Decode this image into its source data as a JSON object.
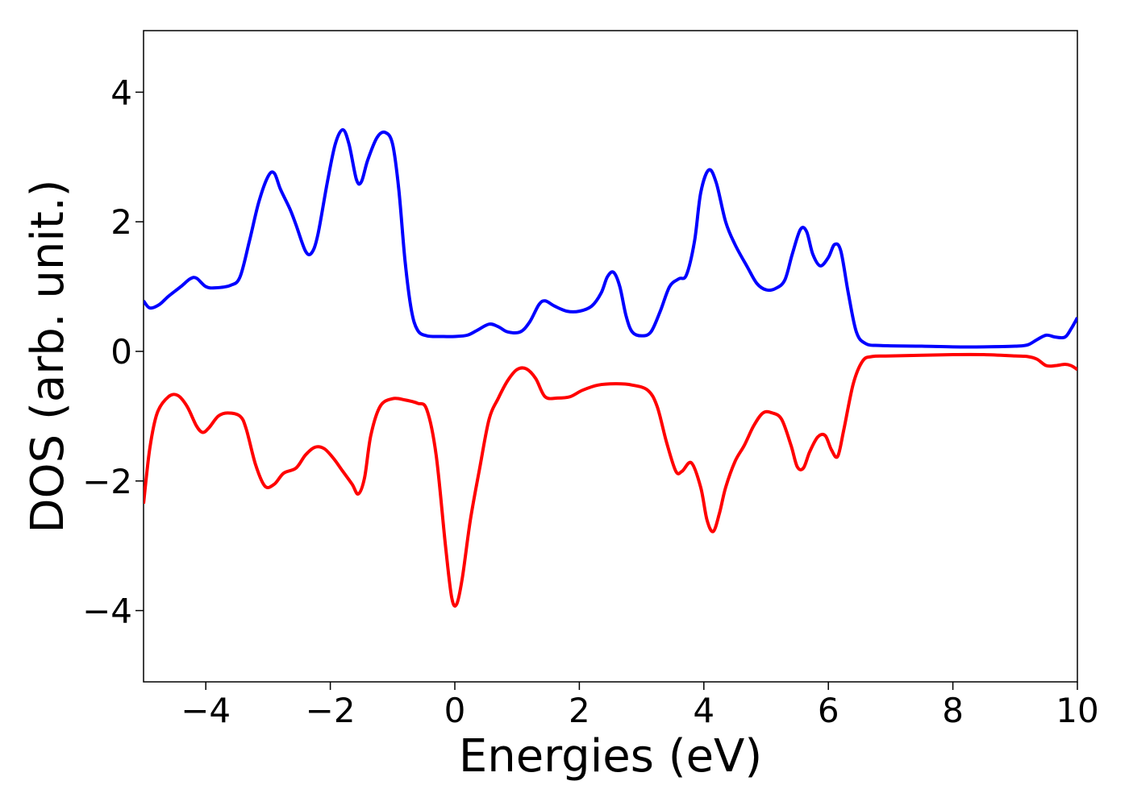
{
  "chart_data": {
    "type": "line",
    "xlabel": "Energies (eV)",
    "ylabel": "DOS (arb. unit.)",
    "xlim": [
      -5,
      10
    ],
    "ylim": [
      -5.1,
      4.95
    ],
    "xticks": [
      -4,
      -2,
      0,
      2,
      4,
      6,
      8,
      10
    ],
    "xtick_labels": [
      "−4",
      "−2",
      "0",
      "2",
      "4",
      "6",
      "8",
      "10"
    ],
    "yticks": [
      -4,
      -2,
      0,
      2,
      4
    ],
    "ytick_labels": [
      "−4",
      "−2",
      "0",
      "2",
      "4"
    ],
    "grid": false,
    "series": [
      {
        "color": "#0000ff",
        "points": [
          [
            -5.0,
            0.78
          ],
          [
            -4.9,
            0.67
          ],
          [
            -4.75,
            0.72
          ],
          [
            -4.6,
            0.85
          ],
          [
            -4.4,
            1.0
          ],
          [
            -4.25,
            1.12
          ],
          [
            -4.15,
            1.13
          ],
          [
            -4.0,
            1.0
          ],
          [
            -3.85,
            0.98
          ],
          [
            -3.6,
            1.02
          ],
          [
            -3.45,
            1.15
          ],
          [
            -3.3,
            1.7
          ],
          [
            -3.15,
            2.3
          ],
          [
            -3.0,
            2.7
          ],
          [
            -2.9,
            2.75
          ],
          [
            -2.8,
            2.5
          ],
          [
            -2.65,
            2.2
          ],
          [
            -2.55,
            1.95
          ],
          [
            -2.4,
            1.55
          ],
          [
            -2.3,
            1.52
          ],
          [
            -2.2,
            1.8
          ],
          [
            -2.05,
            2.6
          ],
          [
            -1.92,
            3.2
          ],
          [
            -1.8,
            3.42
          ],
          [
            -1.7,
            3.2
          ],
          [
            -1.58,
            2.65
          ],
          [
            -1.5,
            2.62
          ],
          [
            -1.4,
            2.95
          ],
          [
            -1.25,
            3.3
          ],
          [
            -1.12,
            3.38
          ],
          [
            -1.0,
            3.2
          ],
          [
            -0.9,
            2.5
          ],
          [
            -0.8,
            1.4
          ],
          [
            -0.7,
            0.65
          ],
          [
            -0.6,
            0.33
          ],
          [
            -0.45,
            0.24
          ],
          [
            -0.2,
            0.23
          ],
          [
            0.0,
            0.23
          ],
          [
            0.2,
            0.25
          ],
          [
            0.35,
            0.32
          ],
          [
            0.55,
            0.42
          ],
          [
            0.7,
            0.38
          ],
          [
            0.85,
            0.3
          ],
          [
            1.05,
            0.3
          ],
          [
            1.2,
            0.45
          ],
          [
            1.35,
            0.72
          ],
          [
            1.45,
            0.78
          ],
          [
            1.6,
            0.7
          ],
          [
            1.8,
            0.62
          ],
          [
            2.0,
            0.62
          ],
          [
            2.2,
            0.7
          ],
          [
            2.35,
            0.9
          ],
          [
            2.45,
            1.15
          ],
          [
            2.55,
            1.22
          ],
          [
            2.65,
            1.0
          ],
          [
            2.75,
            0.55
          ],
          [
            2.85,
            0.3
          ],
          [
            3.0,
            0.24
          ],
          [
            3.15,
            0.3
          ],
          [
            3.3,
            0.62
          ],
          [
            3.45,
            1.0
          ],
          [
            3.6,
            1.12
          ],
          [
            3.72,
            1.18
          ],
          [
            3.85,
            1.7
          ],
          [
            3.95,
            2.45
          ],
          [
            4.08,
            2.8
          ],
          [
            4.2,
            2.6
          ],
          [
            4.35,
            2.0
          ],
          [
            4.5,
            1.65
          ],
          [
            4.7,
            1.3
          ],
          [
            4.85,
            1.05
          ],
          [
            5.0,
            0.95
          ],
          [
            5.15,
            0.97
          ],
          [
            5.3,
            1.1
          ],
          [
            5.42,
            1.5
          ],
          [
            5.55,
            1.88
          ],
          [
            5.65,
            1.85
          ],
          [
            5.75,
            1.5
          ],
          [
            5.87,
            1.32
          ],
          [
            6.0,
            1.45
          ],
          [
            6.1,
            1.65
          ],
          [
            6.2,
            1.55
          ],
          [
            6.32,
            0.9
          ],
          [
            6.45,
            0.3
          ],
          [
            6.6,
            0.12
          ],
          [
            6.85,
            0.09
          ],
          [
            7.5,
            0.08
          ],
          [
            8.0,
            0.07
          ],
          [
            8.5,
            0.07
          ],
          [
            9.0,
            0.08
          ],
          [
            9.2,
            0.1
          ],
          [
            9.35,
            0.18
          ],
          [
            9.5,
            0.25
          ],
          [
            9.65,
            0.22
          ],
          [
            9.8,
            0.22
          ],
          [
            9.9,
            0.35
          ],
          [
            10.0,
            0.52
          ]
        ]
      },
      {
        "color": "#ff0000",
        "points": [
          [
            -5.0,
            -2.35
          ],
          [
            -4.9,
            -1.5
          ],
          [
            -4.78,
            -0.95
          ],
          [
            -4.6,
            -0.7
          ],
          [
            -4.45,
            -0.68
          ],
          [
            -4.3,
            -0.85
          ],
          [
            -4.15,
            -1.15
          ],
          [
            -4.05,
            -1.25
          ],
          [
            -3.95,
            -1.18
          ],
          [
            -3.8,
            -1.0
          ],
          [
            -3.65,
            -0.95
          ],
          [
            -3.45,
            -1.0
          ],
          [
            -3.35,
            -1.2
          ],
          [
            -3.2,
            -1.75
          ],
          [
            -3.05,
            -2.08
          ],
          [
            -2.9,
            -2.05
          ],
          [
            -2.75,
            -1.88
          ],
          [
            -2.55,
            -1.8
          ],
          [
            -2.4,
            -1.6
          ],
          [
            -2.25,
            -1.48
          ],
          [
            -2.1,
            -1.5
          ],
          [
            -1.95,
            -1.65
          ],
          [
            -1.8,
            -1.85
          ],
          [
            -1.65,
            -2.05
          ],
          [
            -1.55,
            -2.2
          ],
          [
            -1.45,
            -1.95
          ],
          [
            -1.35,
            -1.3
          ],
          [
            -1.2,
            -0.85
          ],
          [
            -1.0,
            -0.73
          ],
          [
            -0.8,
            -0.75
          ],
          [
            -0.6,
            -0.8
          ],
          [
            -0.45,
            -0.9
          ],
          [
            -0.3,
            -1.6
          ],
          [
            -0.15,
            -3.0
          ],
          [
            -0.05,
            -3.8
          ],
          [
            0.03,
            -3.9
          ],
          [
            0.12,
            -3.5
          ],
          [
            0.25,
            -2.6
          ],
          [
            0.4,
            -1.8
          ],
          [
            0.55,
            -1.05
          ],
          [
            0.7,
            -0.72
          ],
          [
            0.85,
            -0.45
          ],
          [
            1.0,
            -0.28
          ],
          [
            1.15,
            -0.27
          ],
          [
            1.3,
            -0.42
          ],
          [
            1.45,
            -0.7
          ],
          [
            1.65,
            -0.72
          ],
          [
            1.85,
            -0.7
          ],
          [
            2.05,
            -0.6
          ],
          [
            2.3,
            -0.52
          ],
          [
            2.6,
            -0.5
          ],
          [
            2.85,
            -0.52
          ],
          [
            3.1,
            -0.6
          ],
          [
            3.25,
            -0.85
          ],
          [
            3.4,
            -1.4
          ],
          [
            3.55,
            -1.85
          ],
          [
            3.65,
            -1.85
          ],
          [
            3.8,
            -1.72
          ],
          [
            3.95,
            -2.1
          ],
          [
            4.05,
            -2.6
          ],
          [
            4.15,
            -2.78
          ],
          [
            4.25,
            -2.5
          ],
          [
            4.35,
            -2.1
          ],
          [
            4.5,
            -1.7
          ],
          [
            4.65,
            -1.45
          ],
          [
            4.8,
            -1.15
          ],
          [
            4.95,
            -0.95
          ],
          [
            5.1,
            -0.95
          ],
          [
            5.25,
            -1.05
          ],
          [
            5.4,
            -1.45
          ],
          [
            5.5,
            -1.78
          ],
          [
            5.6,
            -1.8
          ],
          [
            5.7,
            -1.55
          ],
          [
            5.83,
            -1.32
          ],
          [
            5.95,
            -1.3
          ],
          [
            6.05,
            -1.52
          ],
          [
            6.15,
            -1.62
          ],
          [
            6.25,
            -1.2
          ],
          [
            6.4,
            -0.5
          ],
          [
            6.55,
            -0.15
          ],
          [
            6.7,
            -0.08
          ],
          [
            7.0,
            -0.07
          ],
          [
            8.0,
            -0.05
          ],
          [
            8.5,
            -0.05
          ],
          [
            9.0,
            -0.07
          ],
          [
            9.2,
            -0.08
          ],
          [
            9.35,
            -0.12
          ],
          [
            9.5,
            -0.22
          ],
          [
            9.65,
            -0.22
          ],
          [
            9.8,
            -0.2
          ],
          [
            9.9,
            -0.22
          ],
          [
            10.0,
            -0.28
          ]
        ]
      }
    ]
  }
}
